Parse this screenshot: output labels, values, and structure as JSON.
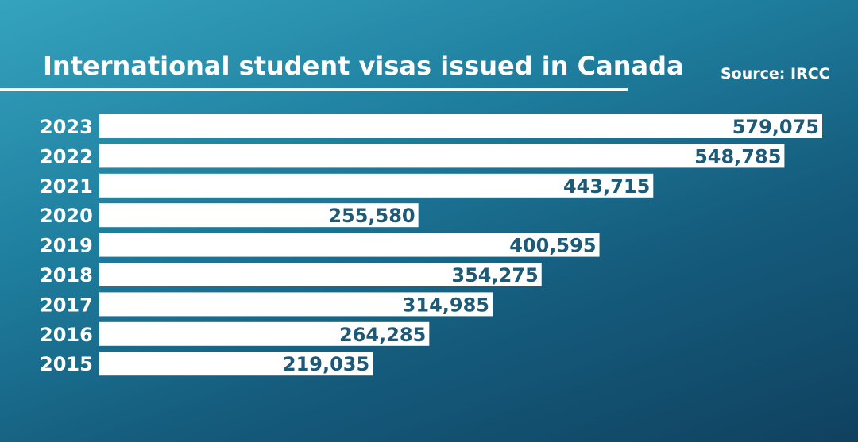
{
  "header": {
    "title": "International student visas issued in Canada",
    "source": "Source: IRCC"
  },
  "chart_data": {
    "type": "bar",
    "orientation": "horizontal",
    "title": "International student visas issued in Canada",
    "source": "Source: IRCC",
    "categories": [
      "2023",
      "2022",
      "2021",
      "2020",
      "2019",
      "2018",
      "2017",
      "2016",
      "2015"
    ],
    "values": [
      579075,
      548785,
      443715,
      255580,
      400595,
      354275,
      314985,
      264285,
      219035
    ],
    "value_labels": [
      "579,075",
      "548,785",
      "443,715",
      "255,580",
      "400,595",
      "354,275",
      "314,985",
      "264,285",
      "219,035"
    ],
    "xlim": [
      0,
      579075
    ],
    "grid": false,
    "legend": "none",
    "colors": {
      "bar": "#ffffff",
      "value_text": "#1d5a78",
      "label_text": "#ffffff"
    }
  }
}
